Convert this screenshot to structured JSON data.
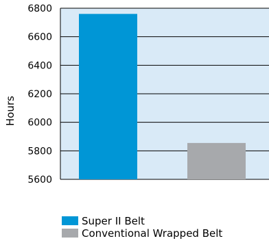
{
  "chart_data": {
    "type": "bar",
    "categories": [
      "Super II Belt",
      "Conventional Wrapped Belt"
    ],
    "values": [
      6760,
      5855
    ],
    "ylabel": "Hours",
    "ylim": [
      5600,
      6800
    ],
    "yticks": [
      5600,
      5800,
      6000,
      6200,
      6400,
      6600,
      6800
    ],
    "grid": true,
    "legend_position": "bottom-left",
    "colors": {
      "plot_background": "#d9eaf7",
      "bars": [
        "#0096d6",
        "#a7a9ac"
      ],
      "gridline": "#000000"
    }
  }
}
